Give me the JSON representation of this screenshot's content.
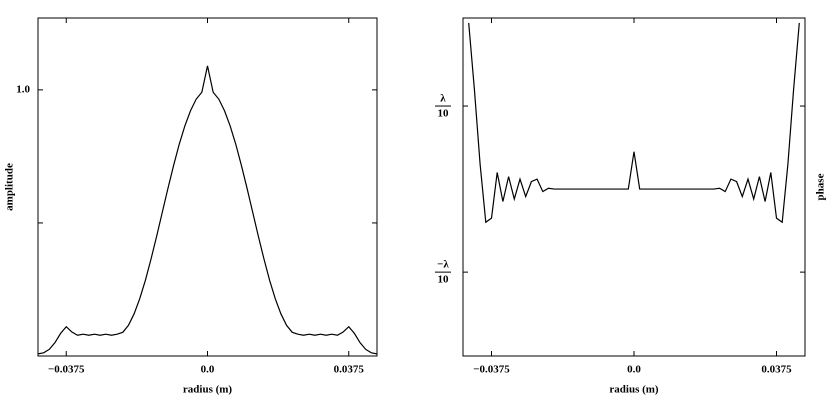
{
  "chart_data": [
    {
      "type": "line",
      "xlabel": "radius (m)",
      "ylabel": "amplitude",
      "ylabel_side": "left",
      "color": "#000000",
      "x": [
        -0.045,
        -0.0435,
        -0.042,
        -0.0405,
        -0.039,
        -0.0375,
        -0.036,
        -0.0345,
        -0.033,
        -0.0315,
        -0.03,
        -0.0285,
        -0.027,
        -0.0255,
        -0.024,
        -0.0225,
        -0.021,
        -0.0195,
        -0.018,
        -0.0165,
        -0.015,
        -0.0135,
        -0.012,
        -0.0105,
        -0.009,
        -0.0075,
        -0.006,
        -0.0045,
        -0.003,
        -0.0015,
        0,
        0.0015,
        0.003,
        0.0045,
        0.006,
        0.0075,
        0.009,
        0.0105,
        0.012,
        0.0135,
        0.015,
        0.0165,
        0.018,
        0.0195,
        0.021,
        0.0225,
        0.024,
        0.0255,
        0.027,
        0.0285,
        0.03,
        0.0315,
        0.033,
        0.0345,
        0.036,
        0.0375,
        0.039,
        0.0405,
        0.042,
        0.0435,
        0.045
      ],
      "values": [
        0.008,
        0.012,
        0.025,
        0.05,
        0.085,
        0.11,
        0.09,
        0.078,
        0.082,
        0.078,
        0.082,
        0.078,
        0.082,
        0.078,
        0.082,
        0.089,
        0.115,
        0.158,
        0.215,
        0.284,
        0.364,
        0.45,
        0.54,
        0.63,
        0.716,
        0.796,
        0.865,
        0.922,
        0.965,
        0.991,
        1.09,
        0.991,
        0.965,
        0.922,
        0.865,
        0.796,
        0.716,
        0.63,
        0.54,
        0.45,
        0.364,
        0.284,
        0.215,
        0.158,
        0.115,
        0.089,
        0.082,
        0.078,
        0.082,
        0.078,
        0.082,
        0.078,
        0.082,
        0.078,
        0.09,
        0.11,
        0.085,
        0.05,
        0.025,
        0.012,
        0.008
      ],
      "xlim": [
        -0.045,
        0.045
      ],
      "ylim": [
        0,
        1.27
      ],
      "xticks": [
        {
          "value": -0.0375,
          "label": "−0.0375"
        },
        {
          "value": 0,
          "label": "0.0"
        },
        0.0375
      ],
      "yticks": [
        {
          "value": 0.5,
          "label": null
        },
        {
          "value": 1,
          "label": "1.0"
        }
      ]
    },
    {
      "type": "line",
      "xlabel": "radius (m)",
      "ylabel": "phase",
      "ylabel_side": "right",
      "color": "#000000",
      "x": [
        -0.045,
        -0.0435,
        -0.042,
        -0.0405,
        -0.039,
        -0.0375,
        -0.036,
        -0.0345,
        -0.033,
        -0.0315,
        -0.03,
        -0.0285,
        -0.027,
        -0.0255,
        -0.024,
        -0.0225,
        -0.021,
        -0.0195,
        -0.018,
        -0.0165,
        -0.015,
        -0.0135,
        -0.012,
        -0.0105,
        -0.009,
        -0.0075,
        -0.006,
        -0.0045,
        -0.003,
        -0.0015,
        0,
        0.0015,
        0.003,
        0.0045,
        0.006,
        0.0075,
        0.009,
        0.0105,
        0.012,
        0.0135,
        0.015,
        0.0165,
        0.018,
        0.0195,
        0.021,
        0.0225,
        0.024,
        0.0255,
        0.027,
        0.0285,
        0.03,
        0.0315,
        0.033,
        0.0345,
        0.036,
        0.0375,
        0.039,
        0.0405,
        0.042,
        0.0435,
        0.045
      ],
      "values": [
        null,
        0.2,
        0.12,
        0.03,
        -0.04,
        -0.035,
        0.02,
        -0.015,
        0.015,
        -0.012,
        0.012,
        -0.009,
        0.009,
        0.012,
        -0.003,
        0.001,
        0,
        0,
        0,
        0,
        0,
        0,
        0,
        0,
        0,
        0,
        0,
        0,
        0,
        0,
        0.045,
        0,
        0,
        0,
        0,
        0,
        0,
        0,
        0,
        0,
        0,
        0,
        0,
        0,
        0,
        0.001,
        -0.003,
        0.012,
        0.009,
        -0.009,
        0.012,
        -0.012,
        0.015,
        -0.015,
        0.02,
        -0.035,
        -0.04,
        0.03,
        0.12,
        0.2,
        null
      ],
      "xlim": [
        -0.045,
        0.045
      ],
      "ylim": [
        -0.201,
        0.206
      ],
      "xticks": [
        {
          "value": -0.0375,
          "label": "−0.0375"
        },
        {
          "value": 0,
          "label": "0.0"
        },
        0.0375
      ],
      "yticks": [
        {
          "value": -0.1,
          "label": "−λ/10"
        },
        {
          "value": 0.1,
          "label": "λ/10"
        }
      ]
    }
  ]
}
